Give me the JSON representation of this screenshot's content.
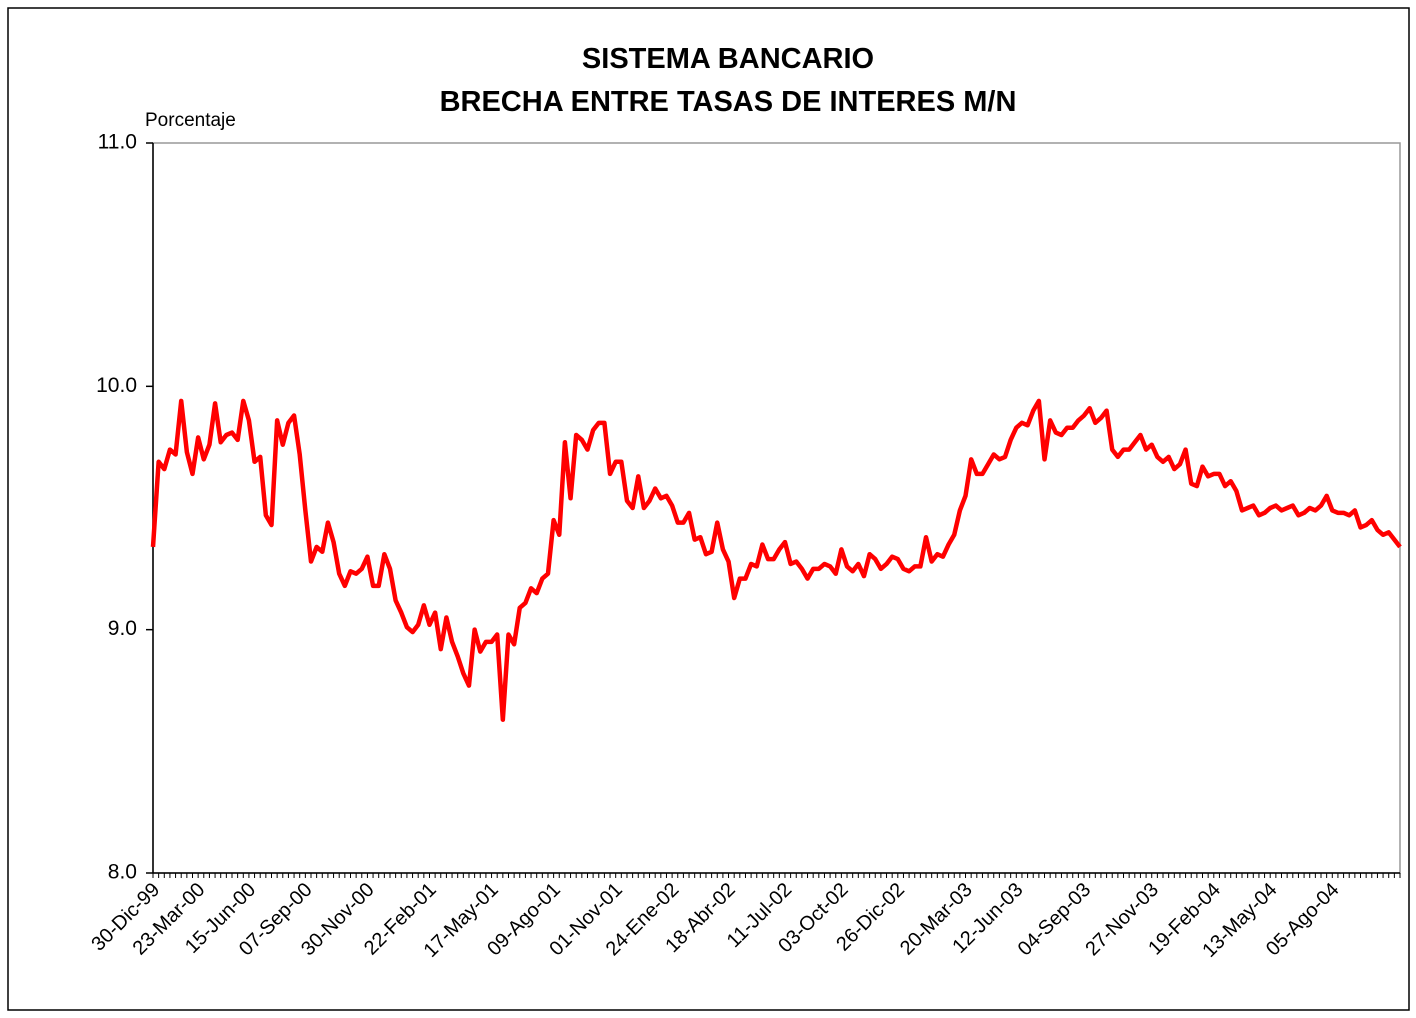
{
  "chart_data": {
    "type": "line",
    "title": "SISTEMA BANCARIO",
    "subtitle": "BRECHA ENTRE TASAS DE INTERES M/N",
    "ylabel": "Porcentaje",
    "color": "#ff0000",
    "ylim": [
      8,
      11
    ],
    "yticks": [
      {
        "value": 8,
        "label": "8.0"
      },
      {
        "value": 9,
        "label": "9.0"
      },
      {
        "value": 10,
        "label": "10.0"
      },
      {
        "value": 11,
        "label": "11.0"
      }
    ],
    "categories": [
      "30-Dic-99",
      null,
      null,
      null,
      null,
      null,
      null,
      null,
      "23-Mar-00",
      null,
      null,
      null,
      null,
      null,
      null,
      null,
      null,
      "15-Jun-00",
      null,
      null,
      null,
      null,
      null,
      null,
      null,
      null,
      null,
      "07-Sep-00",
      null,
      null,
      null,
      null,
      null,
      null,
      null,
      null,
      null,
      null,
      "30-Nov-00",
      null,
      null,
      null,
      null,
      null,
      null,
      null,
      null,
      null,
      null,
      "22-Feb-01",
      null,
      null,
      null,
      null,
      null,
      null,
      null,
      null,
      null,
      null,
      "17-May-01",
      null,
      null,
      null,
      null,
      null,
      null,
      null,
      null,
      null,
      null,
      "09-Ago-01",
      null,
      null,
      null,
      null,
      null,
      null,
      null,
      null,
      null,
      null,
      "01-Nov-01",
      null,
      null,
      null,
      null,
      null,
      null,
      null,
      null,
      null,
      "24-Ene-02",
      null,
      null,
      null,
      null,
      null,
      null,
      null,
      null,
      null,
      "18-Abr-02",
      null,
      null,
      null,
      null,
      null,
      null,
      null,
      null,
      null,
      "11-Jul-02",
      null,
      null,
      null,
      null,
      null,
      null,
      null,
      null,
      null,
      "03-Oct-02",
      null,
      null,
      null,
      null,
      null,
      null,
      null,
      null,
      null,
      "26-Dic-02",
      null,
      null,
      null,
      null,
      null,
      null,
      null,
      null,
      null,
      null,
      null,
      "20-Mar-03",
      null,
      null,
      null,
      null,
      null,
      null,
      null,
      null,
      "12-Jun-03",
      null,
      null,
      null,
      null,
      null,
      null,
      null,
      null,
      null,
      null,
      null,
      "04-Sep-03",
      null,
      null,
      null,
      null,
      null,
      null,
      null,
      null,
      null,
      null,
      null,
      "27-Nov-03",
      null,
      null,
      null,
      null,
      null,
      null,
      null,
      null,
      null,
      null,
      "19-Feb-04",
      null,
      null,
      null,
      null,
      null,
      null,
      null,
      null,
      null,
      "13-May-04",
      null,
      null,
      null,
      null,
      null,
      null,
      null,
      null,
      null,
      null,
      "05-Ago-04",
      null,
      null,
      null,
      null,
      null,
      null,
      null,
      null,
      null,
      null,
      null,
      null
    ],
    "values": [
      9.34,
      9.69,
      9.66,
      9.74,
      9.72,
      9.94,
      9.73,
      9.64,
      9.79,
      9.7,
      9.76,
      9.93,
      9.77,
      9.8,
      9.81,
      9.78,
      9.94,
      9.86,
      9.69,
      9.71,
      9.47,
      9.43,
      9.86,
      9.76,
      9.85,
      9.88,
      9.72,
      9.49,
      9.28,
      9.34,
      9.32,
      9.44,
      9.36,
      9.23,
      9.18,
      9.24,
      9.23,
      9.25,
      9.3,
      9.18,
      9.18,
      9.31,
      9.25,
      9.12,
      9.07,
      9.01,
      8.99,
      9.02,
      9.1,
      9.02,
      9.07,
      8.92,
      9.05,
      8.95,
      8.89,
      8.82,
      8.77,
      9.0,
      8.91,
      8.95,
      8.95,
      8.98,
      8.63,
      8.98,
      8.94,
      9.09,
      9.11,
      9.17,
      9.15,
      9.21,
      9.23,
      9.45,
      9.39,
      9.77,
      9.54,
      9.8,
      9.78,
      9.74,
      9.82,
      9.85,
      9.85,
      9.64,
      9.69,
      9.69,
      9.53,
      9.5,
      9.63,
      9.5,
      9.53,
      9.58,
      9.54,
      9.55,
      9.51,
      9.44,
      9.44,
      9.48,
      9.37,
      9.38,
      9.31,
      9.32,
      9.44,
      9.33,
      9.28,
      9.13,
      9.21,
      9.21,
      9.27,
      9.26,
      9.35,
      9.29,
      9.29,
      9.33,
      9.36,
      9.27,
      9.28,
      9.25,
      9.21,
      9.25,
      9.25,
      9.27,
      9.26,
      9.23,
      9.33,
      9.26,
      9.24,
      9.27,
      9.22,
      9.31,
      9.29,
      9.25,
      9.27,
      9.3,
      9.29,
      9.25,
      9.24,
      9.26,
      9.26,
      9.38,
      9.28,
      9.31,
      9.3,
      9.35,
      9.39,
      9.49,
      9.55,
      9.7,
      9.64,
      9.64,
      9.68,
      9.72,
      9.7,
      9.71,
      9.78,
      9.83,
      9.85,
      9.84,
      9.9,
      9.94,
      9.7,
      9.86,
      9.81,
      9.8,
      9.83,
      9.83,
      9.86,
      9.88,
      9.91,
      9.85,
      9.87,
      9.9,
      9.74,
      9.71,
      9.74,
      9.74,
      9.77,
      9.8,
      9.74,
      9.76,
      9.71,
      9.69,
      9.71,
      9.66,
      9.68,
      9.74,
      9.6,
      9.59,
      9.67,
      9.63,
      9.64,
      9.64,
      9.59,
      9.61,
      9.57,
      9.49,
      9.5,
      9.51,
      9.47,
      9.48,
      9.5,
      9.51,
      9.49,
      9.5,
      9.51,
      9.47,
      9.48,
      9.5,
      9.49,
      9.51,
      9.55,
      9.49,
      9.48,
      9.48,
      9.47,
      9.49,
      9.42,
      9.43,
      9.45,
      9.41,
      9.39,
      9.4,
      9.37,
      9.34
    ]
  }
}
